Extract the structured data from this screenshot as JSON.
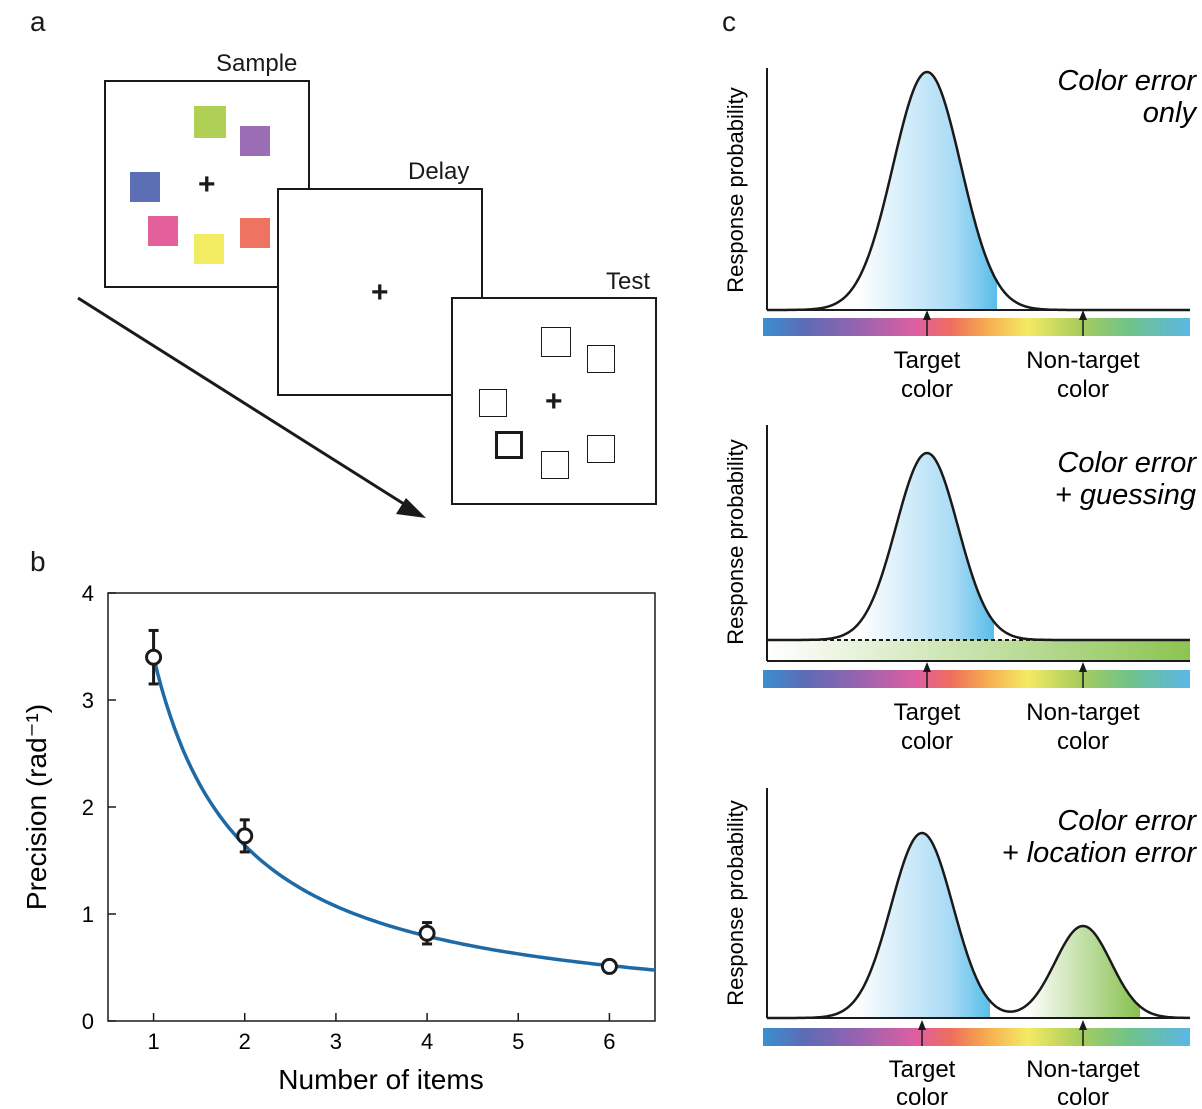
{
  "panel_letters": {
    "a": "a",
    "b": "b",
    "c": "c"
  },
  "panel_a": {
    "screens": {
      "sample": "Sample",
      "delay": "Delay",
      "test": "Test"
    },
    "sample_colors": [
      "#b0cf55",
      "#9b6db5",
      "#5c6fb4",
      "#e3609a",
      "#f2ec63",
      "#ee7360"
    ],
    "fixation": "+"
  },
  "chart_data": {
    "type": "scatter",
    "title": "",
    "xlabel": "Number of items",
    "ylabel": "Precision (rad⁻¹)",
    "xlim": [
      0.5,
      6.5
    ],
    "ylim": [
      0,
      4
    ],
    "xticks": [
      1,
      2,
      3,
      4,
      5,
      6
    ],
    "yticks": [
      0,
      1,
      2,
      3,
      4
    ],
    "series": [
      {
        "x": [
          1,
          2,
          4,
          6
        ],
        "y": [
          3.4,
          1.73,
          0.82,
          0.51
        ],
        "err": [
          0.25,
          0.15,
          0.1,
          0.04
        ]
      }
    ],
    "fit_curve": {
      "color": "#1e6aa6",
      "model": "power",
      "a": 3.4,
      "b": -1.05
    },
    "grid": false
  },
  "panel_c": {
    "ylabel": "Response probability",
    "target_label": [
      "Target",
      "color"
    ],
    "nontarget_label": [
      "Non-target",
      "color"
    ],
    "models": [
      {
        "title": [
          "Color error",
          "only"
        ]
      },
      {
        "title": [
          "Color error",
          "+ guessing"
        ]
      },
      {
        "title": [
          "Color error",
          "+ location error"
        ]
      }
    ]
  }
}
